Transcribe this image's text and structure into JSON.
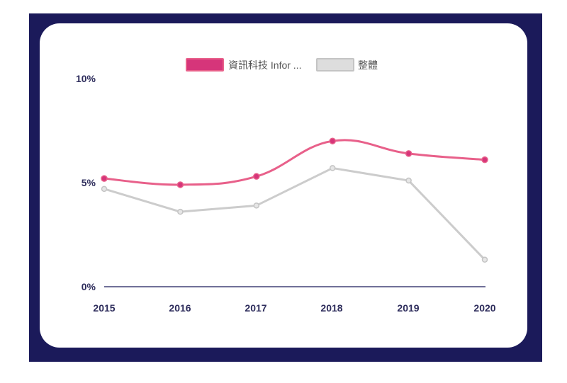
{
  "chart_data": {
    "type": "line",
    "categories": [
      "2015",
      "2016",
      "2017",
      "2018",
      "2019",
      "2020"
    ],
    "series": [
      {
        "name": "資訊科技 Infor ...",
        "color": "#e8608a",
        "swatch_color": "#d6357a",
        "values": [
          5.2,
          4.9,
          5.3,
          7.0,
          6.4,
          6.1
        ]
      },
      {
        "name": "整體",
        "color": "#cccccc",
        "swatch_color": "#dddddd",
        "values": [
          4.7,
          3.6,
          3.9,
          5.7,
          5.1,
          1.3
        ]
      }
    ],
    "ylim": [
      0,
      10
    ],
    "yticks": [
      "0%",
      "5%",
      "10%"
    ],
    "ytick_values": [
      0,
      5,
      10
    ],
    "legend_position": "top-center",
    "grid": false
  }
}
